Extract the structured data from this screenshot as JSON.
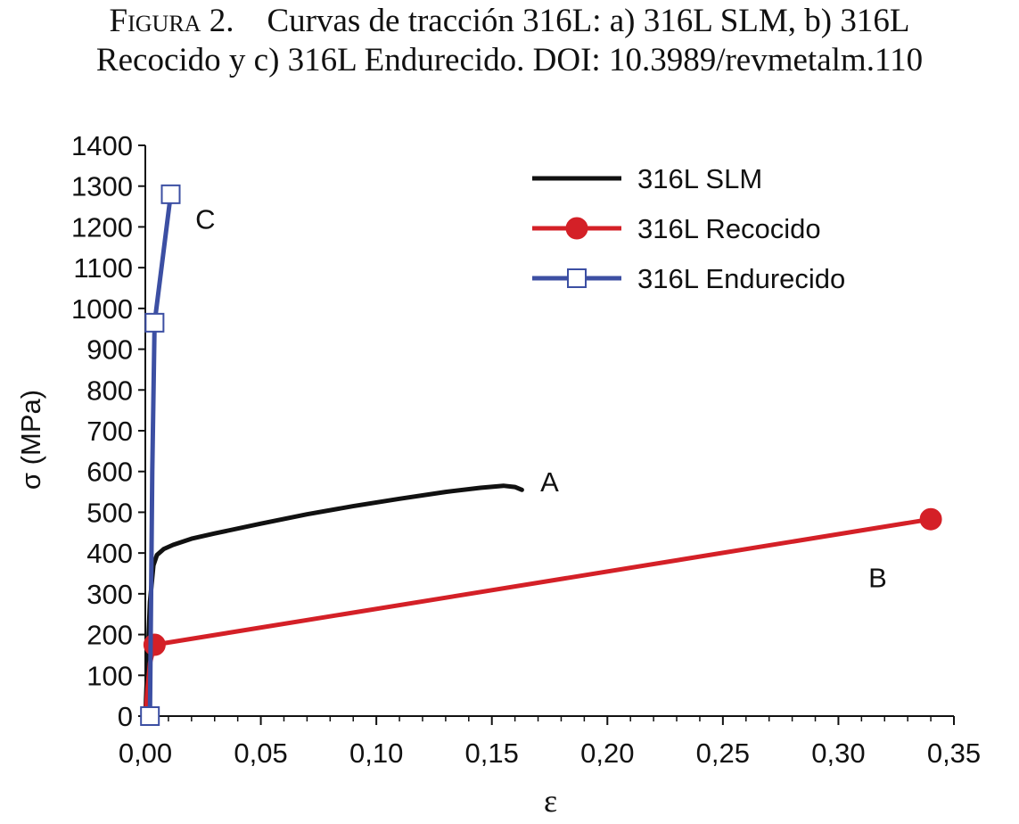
{
  "caption": {
    "label": "Figura 2.",
    "line1": "Curvas de tracción 316L: a) 316L SLM, b) 316L",
    "line2": "Recocido y c) 316L Endurecido. DOI: 10.3989/revmetalm.110"
  },
  "chart_data": {
    "type": "line",
    "xlabel": "ε",
    "ylabel": "σ (MPa)",
    "xlim": [
      0,
      0.35
    ],
    "ylim": [
      0,
      1400
    ],
    "x_ticks": [
      "0,00",
      "0,05",
      "0,10",
      "0,15",
      "0,20",
      "0,25",
      "0,30",
      "0,35"
    ],
    "x_tick_values": [
      0,
      0.05,
      0.1,
      0.15,
      0.2,
      0.25,
      0.3,
      0.35
    ],
    "y_ticks": [
      "0",
      "100",
      "200",
      "300",
      "400",
      "500",
      "600",
      "700",
      "800",
      "900",
      "1000",
      "1100",
      "1200",
      "1300",
      "1400"
    ],
    "y_tick_values": [
      0,
      100,
      200,
      300,
      400,
      500,
      600,
      700,
      800,
      900,
      1000,
      1100,
      1200,
      1300,
      1400
    ],
    "grid": false,
    "legend_position": "top-right",
    "series": [
      {
        "name": "316L SLM",
        "color": "#111111",
        "marker": "none",
        "x": [
          0,
          0.002,
          0.0035,
          0.005,
          0.008,
          0.012,
          0.02,
          0.03,
          0.05,
          0.07,
          0.09,
          0.11,
          0.13,
          0.145,
          0.155,
          0.16,
          0.163
        ],
        "y": [
          0,
          280,
          370,
          395,
          410,
          420,
          435,
          448,
          472,
          495,
          515,
          533,
          550,
          560,
          565,
          562,
          555
        ]
      },
      {
        "name": "316L Recocido",
        "color": "#d42027",
        "marker": "circle",
        "x": [
          0,
          0.001,
          0.002,
          0.004,
          0.34
        ],
        "y": [
          0,
          70,
          130,
          175,
          483
        ]
      },
      {
        "name": "316L Endurecido",
        "color": "#3c4fa3",
        "marker": "square",
        "x": [
          0.002,
          0.0025,
          0.003,
          0.004,
          0.011
        ],
        "y": [
          0,
          300,
          600,
          965,
          1280
        ]
      }
    ],
    "annotations": [
      {
        "text": "A",
        "x": 0.175,
        "y": 575
      },
      {
        "text": "B",
        "x": 0.317,
        "y": 340
      },
      {
        "text": "C",
        "x": 0.026,
        "y": 1220
      }
    ]
  }
}
